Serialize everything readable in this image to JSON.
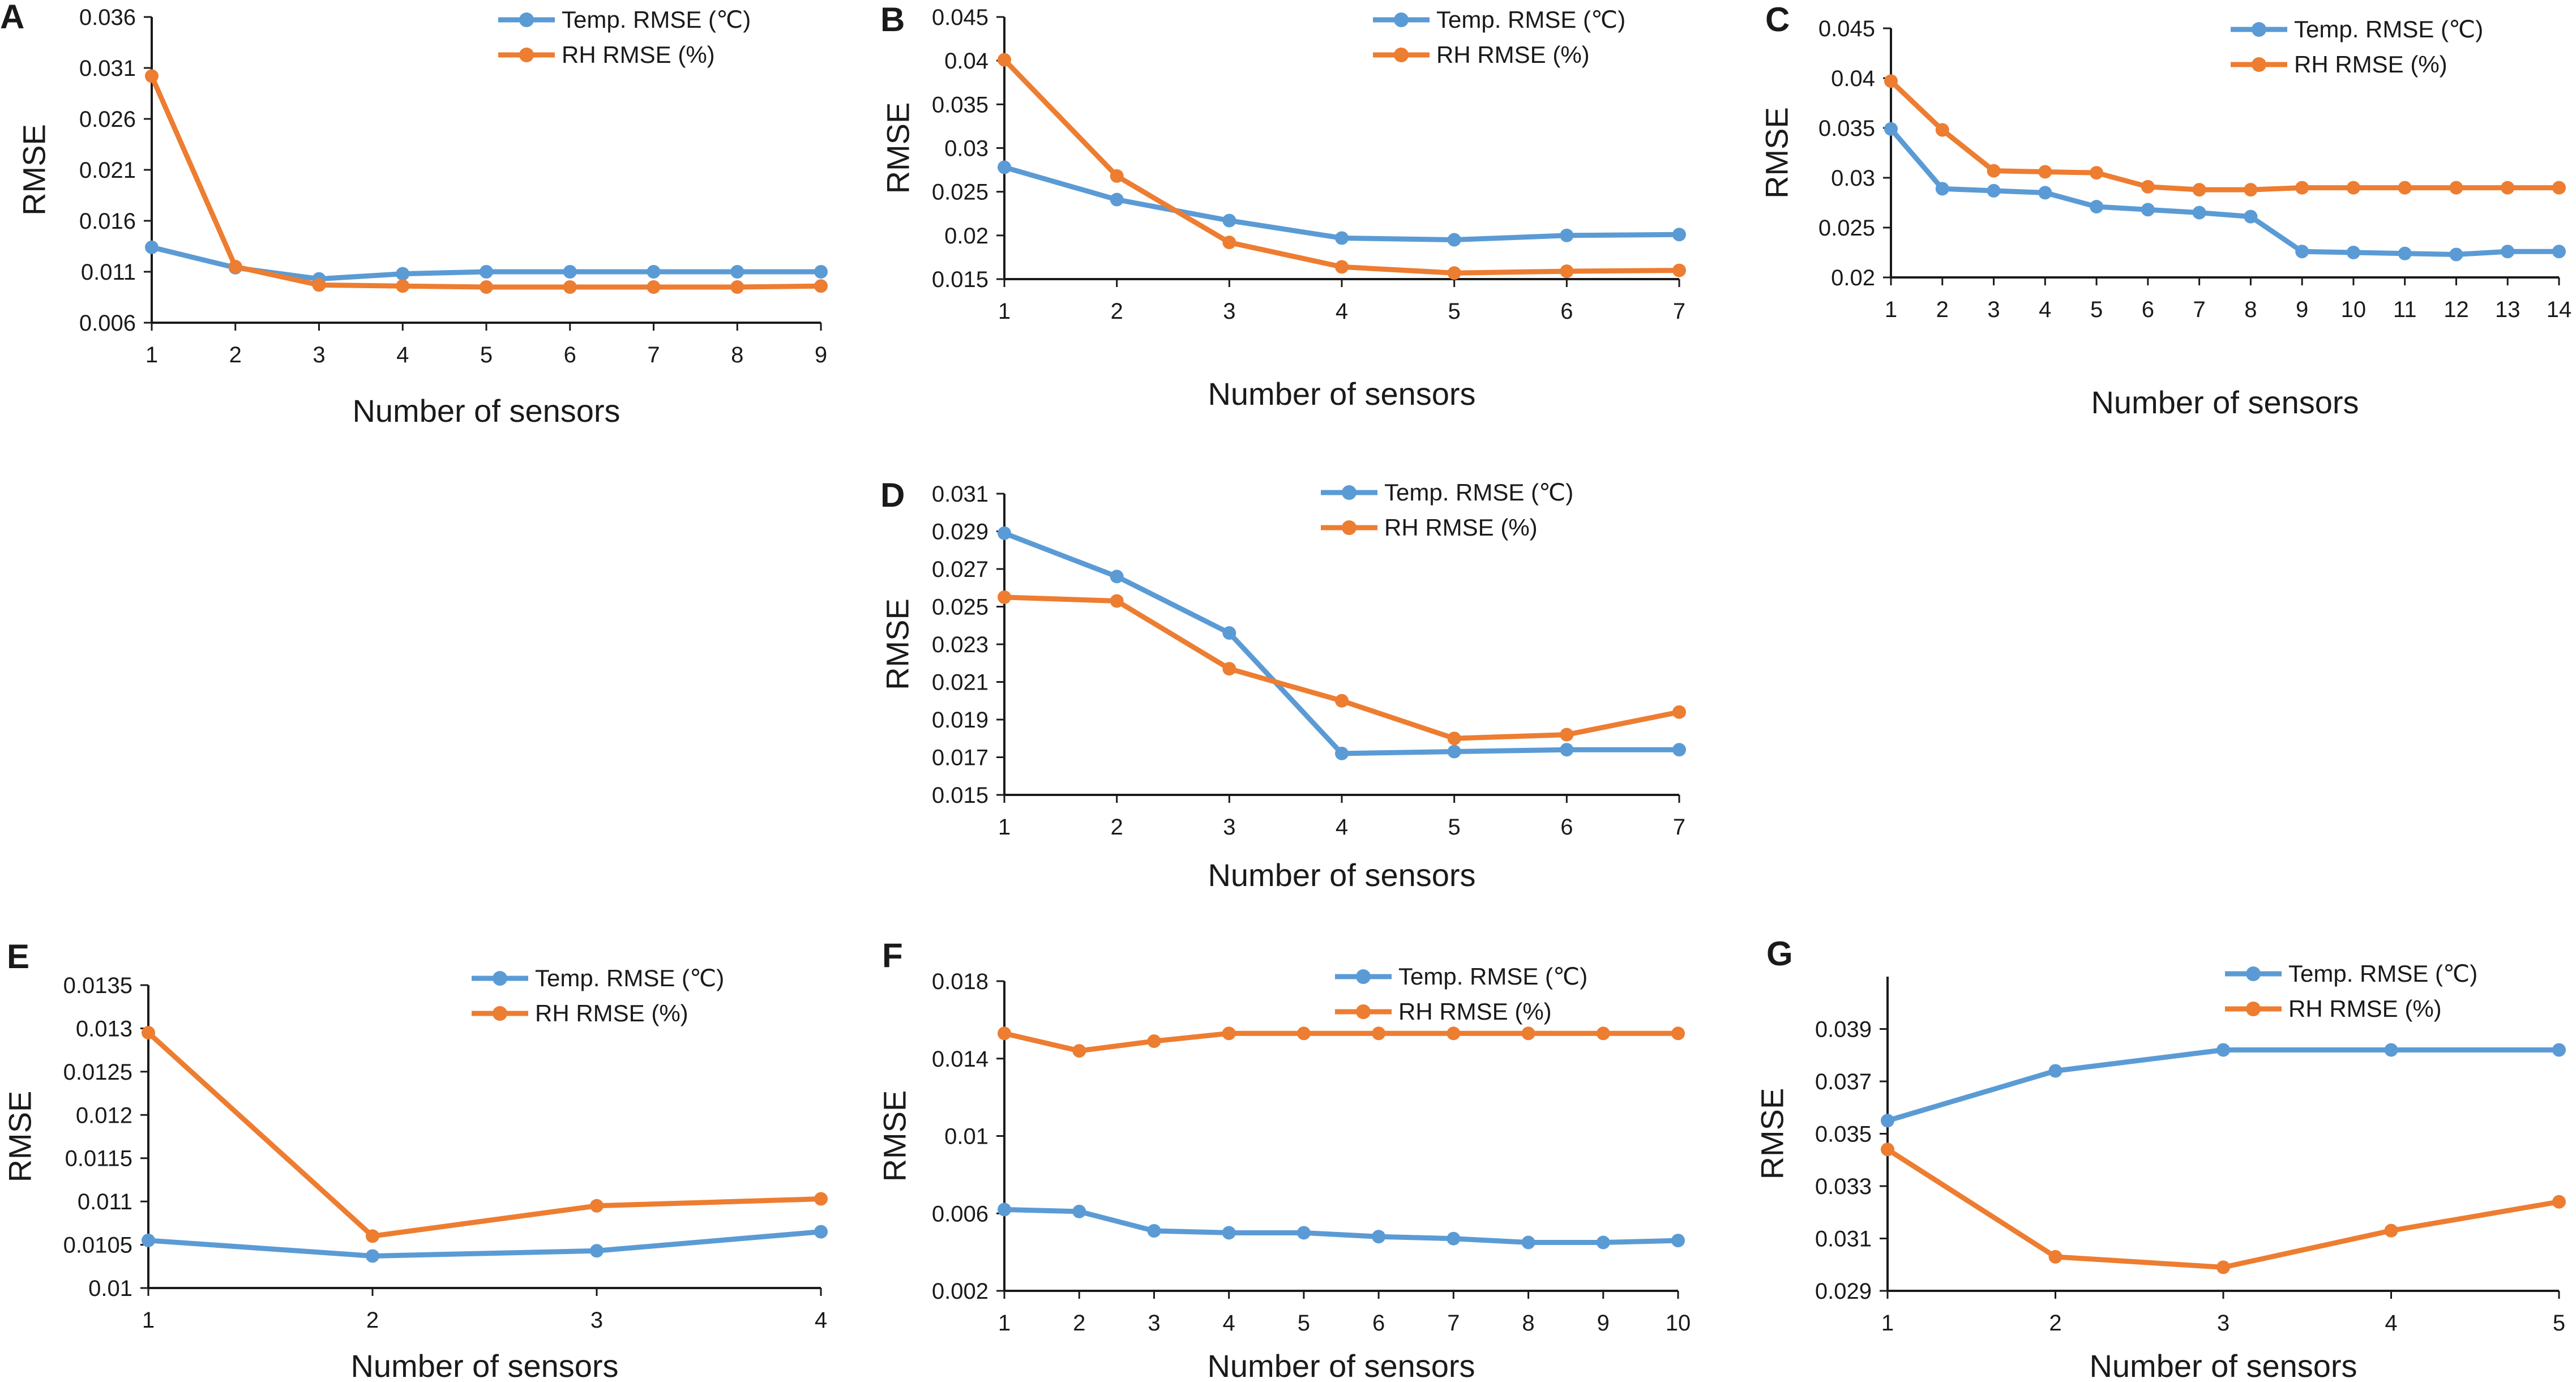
{
  "figure": {
    "background": "#ffffff"
  },
  "colors": {
    "temp": "#5B9BD5",
    "rh": "#ED7D31",
    "axis": "#1a1a1a"
  },
  "chart_data": [
    {
      "panel": "A",
      "type": "line",
      "xlabel": "Number of sensors",
      "ylabel": "RMSE",
      "x": [
        1,
        2,
        3,
        4,
        5,
        6,
        7,
        8,
        9
      ],
      "ylim": [
        0.006,
        0.036
      ],
      "yticks": [
        0.006,
        0.011,
        0.016,
        0.021,
        0.026,
        0.031,
        0.036
      ],
      "ytick_labels": [
        "0.006",
        "0.011",
        "0.016",
        "0.021",
        "0.026",
        "0.031",
        "0.036"
      ],
      "series": [
        {
          "name": "Temp. RMSE (℃)",
          "values": [
            0.0134,
            0.0114,
            0.0103,
            0.0108,
            0.011,
            0.011,
            0.011,
            0.011,
            0.011
          ]
        },
        {
          "name": "RH RMSE (%)",
          "values": [
            0.0302,
            0.0115,
            0.0097,
            0.0096,
            0.0095,
            0.0095,
            0.0095,
            0.0095,
            0.0096
          ]
        }
      ]
    },
    {
      "panel": "B",
      "type": "line",
      "xlabel": "Number of sensors",
      "ylabel": "RMSE",
      "x": [
        1,
        2,
        3,
        4,
        5,
        6,
        7
      ],
      "ylim": [
        0.015,
        0.045
      ],
      "yticks": [
        0.015,
        0.02,
        0.025,
        0.03,
        0.035,
        0.04,
        0.045
      ],
      "ytick_labels": [
        "0.015",
        "0.02",
        "0.025",
        "0.03",
        "0.035",
        "0.04",
        "0.045"
      ],
      "series": [
        {
          "name": "Temp. RMSE (℃)",
          "values": [
            0.0278,
            0.0241,
            0.0217,
            0.0197,
            0.0195,
            0.02,
            0.0201
          ]
        },
        {
          "name": "RH RMSE (%)",
          "values": [
            0.0401,
            0.0268,
            0.0192,
            0.0164,
            0.0157,
            0.0159,
            0.016
          ]
        }
      ]
    },
    {
      "panel": "C",
      "type": "line",
      "xlabel": "Number of sensors",
      "ylabel": "RMSE",
      "x": [
        1,
        2,
        3,
        4,
        5,
        6,
        7,
        8,
        9,
        10,
        11,
        12,
        13,
        14
      ],
      "ylim": [
        0.02,
        0.045
      ],
      "yticks": [
        0.02,
        0.025,
        0.03,
        0.035,
        0.04,
        0.045
      ],
      "ytick_labels": [
        "0.02",
        "0.025",
        "0.03",
        "0.035",
        "0.04",
        "0.045"
      ],
      "series": [
        {
          "name": "Temp. RMSE (℃)",
          "values": [
            0.0349,
            0.0289,
            0.0287,
            0.0285,
            0.0271,
            0.0268,
            0.0265,
            0.0261,
            0.0226,
            0.0225,
            0.0224,
            0.0223,
            0.0226,
            0.0226
          ]
        },
        {
          "name": "RH RMSE (%)",
          "values": [
            0.0397,
            0.0348,
            0.0307,
            0.0306,
            0.0305,
            0.0291,
            0.0288,
            0.0288,
            0.029,
            0.029,
            0.029,
            0.029,
            0.029,
            0.029
          ]
        }
      ]
    },
    {
      "panel": "D",
      "type": "line",
      "xlabel": "Number of sensors",
      "ylabel": "RMSE",
      "x": [
        1,
        2,
        3,
        4,
        5,
        6,
        7
      ],
      "ylim": [
        0.015,
        0.031
      ],
      "yticks": [
        0.015,
        0.017,
        0.019,
        0.021,
        0.023,
        0.025,
        0.027,
        0.029,
        0.031
      ],
      "ytick_labels": [
        "0.015",
        "0.017",
        "0.019",
        "0.021",
        "0.023",
        "0.025",
        "0.027",
        "0.029",
        "0.031"
      ],
      "series": [
        {
          "name": "Temp. RMSE (℃)",
          "values": [
            0.0289,
            0.0266,
            0.0236,
            0.0172,
            0.0173,
            0.0174,
            0.0174
          ]
        },
        {
          "name": "RH RMSE (%)",
          "values": [
            0.0255,
            0.0253,
            0.0217,
            0.02,
            0.018,
            0.0182,
            0.0194
          ]
        }
      ]
    },
    {
      "panel": "E",
      "type": "line",
      "xlabel": "Number of sensors",
      "ylabel": "RMSE",
      "x": [
        1,
        2,
        3,
        4
      ],
      "ylim": [
        0.01,
        0.0135
      ],
      "yticks": [
        0.01,
        0.0105,
        0.011,
        0.0115,
        0.012,
        0.0125,
        0.013,
        0.0135
      ],
      "ytick_labels": [
        "0.01",
        "0.0105",
        "0.011",
        "0.0115",
        "0.012",
        "0.0125",
        "0.013",
        "0.0135"
      ],
      "series": [
        {
          "name": "Temp. RMSE (℃)",
          "values": [
            0.01055,
            0.01037,
            0.01043,
            0.01065
          ]
        },
        {
          "name": "RH RMSE (%)",
          "values": [
            0.01295,
            0.0106,
            0.01095,
            0.01103
          ]
        }
      ]
    },
    {
      "panel": "F",
      "type": "line",
      "xlabel": "Number of sensors",
      "ylabel": "RMSE",
      "x": [
        1,
        2,
        3,
        4,
        5,
        6,
        7,
        8,
        9,
        10
      ],
      "ylim": [
        0.002,
        0.018
      ],
      "yticks": [
        0.002,
        0.006,
        0.01,
        0.014,
        0.018
      ],
      "ytick_labels": [
        "0.002",
        "0.006",
        "0.01",
        "0.014",
        "0.018"
      ],
      "series": [
        {
          "name": "Temp. RMSE (℃)",
          "values": [
            0.0062,
            0.0061,
            0.0051,
            0.005,
            0.005,
            0.0048,
            0.0047,
            0.0045,
            0.0045,
            0.0046
          ]
        },
        {
          "name": "RH RMSE (%)",
          "values": [
            0.0153,
            0.0144,
            0.0149,
            0.0153,
            0.0153,
            0.0153,
            0.0153,
            0.0153,
            0.0153,
            0.0153
          ]
        }
      ]
    },
    {
      "panel": "G",
      "type": "line",
      "xlabel": "Number of sensors",
      "ylabel": "RMSE",
      "x": [
        1,
        2,
        3,
        4,
        5
      ],
      "ylim": [
        0.029,
        0.041
      ],
      "yticks": [
        0.029,
        0.031,
        0.033,
        0.035,
        0.037,
        0.039
      ],
      "ytick_labels": [
        "0.029",
        "0.031",
        "0.033",
        "0.035",
        "0.037",
        "0.039"
      ],
      "series": [
        {
          "name": "Temp. RMSE (℃)",
          "values": [
            0.0355,
            0.0374,
            0.0382,
            0.0382,
            0.0382
          ]
        },
        {
          "name": "RH RMSE (%)",
          "values": [
            0.0344,
            0.0303,
            0.0299,
            0.0313,
            0.0324
          ]
        }
      ]
    }
  ]
}
